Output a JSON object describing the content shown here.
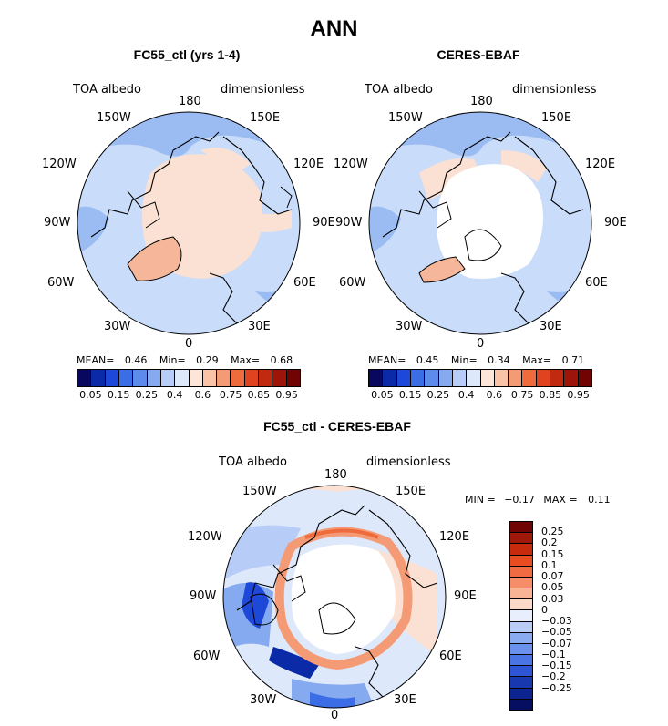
{
  "title": "ANN",
  "panels": {
    "model": {
      "title": "FC55_ctl (yrs 1-4)",
      "left_label": "TOA albedo",
      "right_label": "dimensionless",
      "stats": {
        "mean_label": "MEAN=",
        "mean": "0.46",
        "min_label": "Min=",
        "min": "0.29",
        "max_label": "Max=",
        "max": "0.68"
      }
    },
    "obs": {
      "title": "CERES-EBAF",
      "left_label": "TOA albedo",
      "right_label": "dimensionless",
      "stats": {
        "mean_label": "MEAN=",
        "mean": "0.45",
        "min_label": "Min=",
        "min": "0.34",
        "max_label": "Max=",
        "max": "0.71"
      }
    },
    "diff": {
      "title": "FC55_ctl - CERES-EBAF",
      "left_label": "TOA albedo",
      "right_label": "dimensionless",
      "stats": {
        "min_label": "MIN =",
        "min": "−0.17",
        "max_label": "MAX =",
        "max": "0.11"
      }
    }
  },
  "longitude_labels": {
    "lon_180": "180",
    "lon_150w": "150W",
    "lon_150e": "150E",
    "lon_120w": "120W",
    "lon_120e": "120E",
    "lon_90w": "90W",
    "lon_90e": "90E",
    "lon_60w": "60W",
    "lon_60e": "60E",
    "lon_30w": "30W",
    "lon_30e": "30E",
    "lon_0": "0"
  },
  "colorbar_abs": {
    "colors": [
      "#08085e",
      "#0b2aa8",
      "#1e48d8",
      "#3b6de6",
      "#5c8bec",
      "#86aaf0",
      "#b7ccf6",
      "#dde8fb",
      "#fde5d7",
      "#f8c3a6",
      "#f49b75",
      "#ee6b3e",
      "#e04320",
      "#c12a0e",
      "#9c1508",
      "#700404"
    ],
    "ticks": [
      "0.05",
      "0.15",
      "0.25",
      "0.4",
      "0.6",
      "0.75",
      "0.85",
      "0.95"
    ]
  },
  "colorbar_diff": {
    "colors": [
      "#700404",
      "#a0180a",
      "#c82a0e",
      "#e84c20",
      "#f06a42",
      "#f58d68",
      "#f8b495",
      "#fcdac7",
      "#e8eefb",
      "#b8ccf5",
      "#8aabef",
      "#6a92ec",
      "#4a73e4",
      "#2e55d6",
      "#1838b0",
      "#0c2490",
      "#060e62"
    ],
    "ticks": [
      "0.25",
      "0.2",
      "0.15",
      "0.1",
      "0.07",
      "0.05",
      "0.03",
      "0",
      "−0.03",
      "−0.05",
      "−0.07",
      "−0.1",
      "−0.15",
      "−0.2",
      "−0.25"
    ]
  }
}
